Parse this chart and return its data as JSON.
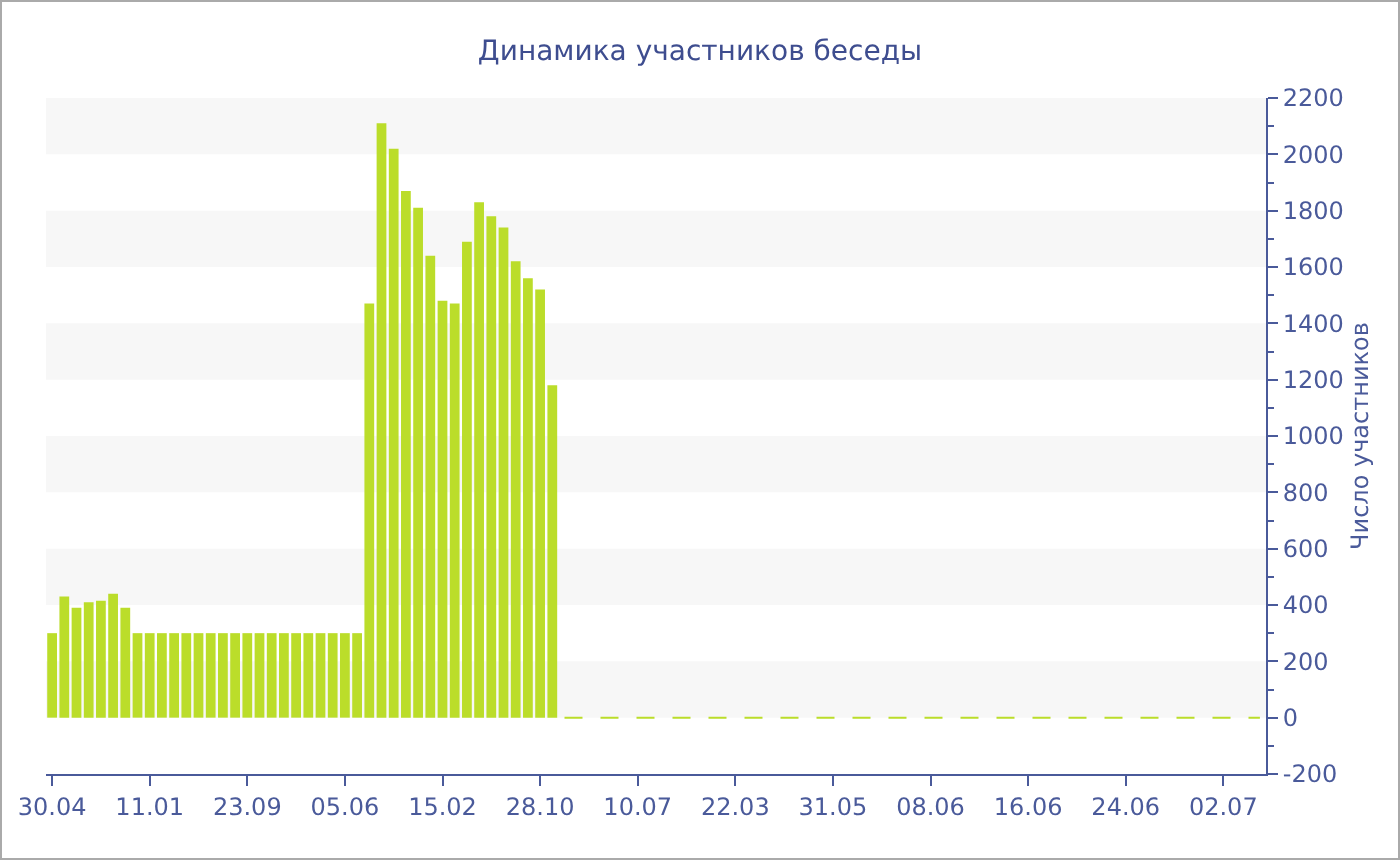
{
  "chart_data": {
    "type": "bar",
    "title": "Динамика участников беседы",
    "ylabel": "Число участников",
    "categories": [
      "30.04",
      null,
      null,
      null,
      null,
      null,
      null,
      null,
      "11.01",
      null,
      null,
      null,
      null,
      null,
      null,
      null,
      "23.09",
      null,
      null,
      null,
      null,
      null,
      null,
      null,
      "05.06",
      null,
      null,
      null,
      null,
      null,
      null,
      null,
      "15.02",
      null,
      null,
      null,
      null,
      null,
      null,
      null,
      "28.10",
      null,
      null,
      null,
      null,
      null,
      null,
      null,
      "10.07",
      null,
      null,
      null,
      null,
      null,
      null,
      null,
      "22.03",
      null,
      null,
      null,
      null,
      null,
      null,
      null,
      "31.05",
      null,
      null,
      null,
      null,
      null,
      null,
      null,
      "08.06",
      null,
      null,
      null,
      null,
      null,
      null,
      null,
      "16.06",
      null,
      null,
      null,
      null,
      null,
      null,
      null,
      "24.06",
      null,
      null,
      null,
      null,
      null,
      null,
      null,
      "02.07",
      null,
      null,
      null
    ],
    "series": [
      {
        "color": "#bbdd2a",
        "values": [
          300,
          430,
          390,
          410,
          415,
          440,
          390,
          300,
          300,
          300,
          300,
          300,
          300,
          300,
          300,
          300,
          300,
          300,
          300,
          300,
          300,
          300,
          300,
          300,
          300,
          300,
          1470,
          2110,
          2020,
          1870,
          1810,
          1640,
          1480,
          1470,
          1690,
          1830,
          1780,
          1740,
          1620,
          1560,
          1520,
          1180,
          null,
          null,
          null,
          null,
          null,
          null,
          null,
          null,
          null,
          null,
          null,
          null,
          null,
          null,
          null,
          null,
          null,
          null,
          null,
          null,
          null,
          null,
          null,
          null,
          null,
          null,
          null,
          null,
          null,
          null,
          null,
          null,
          null,
          null,
          null,
          null,
          null,
          null,
          null,
          null,
          null,
          null,
          null,
          null,
          null,
          null,
          null,
          null,
          null,
          null,
          null,
          null,
          null,
          null,
          null,
          null,
          null,
          null
        ]
      },
      {
        "type": "line",
        "color": "#bbdd2a",
        "line_style": "dashed",
        "values": [
          null,
          null,
          null,
          null,
          null,
          null,
          null,
          null,
          null,
          null,
          null,
          null,
          null,
          null,
          null,
          null,
          null,
          null,
          null,
          null,
          null,
          null,
          null,
          null,
          null,
          null,
          null,
          null,
          null,
          null,
          null,
          null,
          null,
          null,
          null,
          null,
          null,
          null,
          null,
          null,
          null,
          null,
          0,
          0,
          0,
          0,
          0,
          0,
          0,
          0,
          0,
          0,
          0,
          0,
          0,
          0,
          0,
          0,
          0,
          0,
          0,
          0,
          0,
          0,
          0,
          0,
          0,
          0,
          0,
          0,
          0,
          0,
          0,
          0,
          0,
          0,
          0,
          0,
          0,
          0,
          0,
          0,
          0,
          0,
          0,
          0,
          0,
          0,
          0,
          0,
          0,
          0,
          0,
          0,
          0,
          0,
          0,
          0,
          0,
          0
        ]
      }
    ],
    "ylim": [
      -200,
      2200
    ],
    "yticks": [
      -200,
      0,
      200,
      400,
      600,
      800,
      1000,
      1200,
      1400,
      1600,
      1800,
      2000,
      2200
    ],
    "bands": [
      {
        "axis": "y",
        "from": 0,
        "to": 200,
        "color": "#f7f7f7"
      },
      {
        "axis": "y",
        "from": 400,
        "to": 600,
        "color": "#f7f7f7"
      },
      {
        "axis": "y",
        "from": 800,
        "to": 1000,
        "color": "#f7f7f7"
      },
      {
        "axis": "y",
        "from": 1200,
        "to": 1400,
        "color": "#f7f7f7"
      },
      {
        "axis": "y",
        "from": 1600,
        "to": 1800,
        "color": "#f7f7f7"
      },
      {
        "axis": "y",
        "from": 2000,
        "to": 2200,
        "color": "#f7f7f7"
      }
    ]
  }
}
